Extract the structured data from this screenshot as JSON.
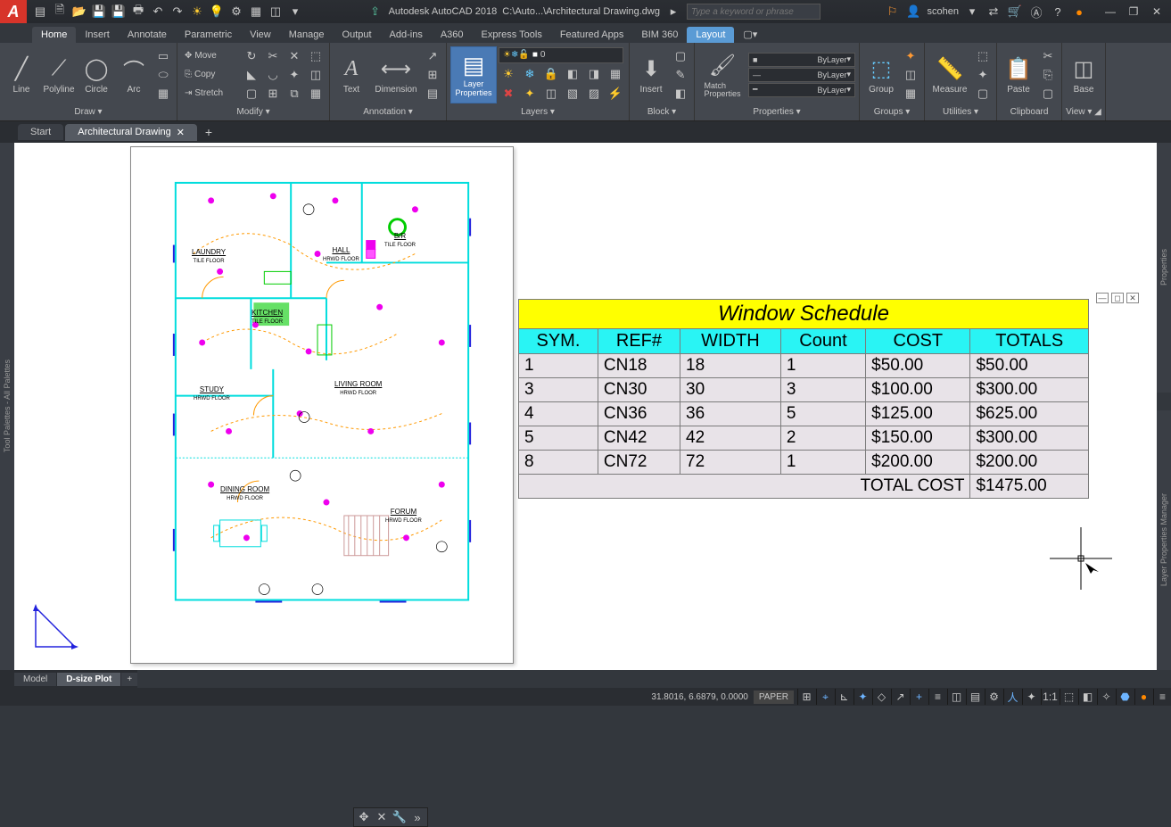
{
  "title": {
    "app": "Autodesk AutoCAD 2018",
    "file": "C:\\Auto...\\Architectural Drawing.dwg",
    "search_placeholder": "Type a keyword or phrase",
    "user": "scohen"
  },
  "qat": [
    "new",
    "open",
    "save",
    "undo",
    "redo",
    "print",
    "|",
    "sun",
    "bulb",
    "gear",
    "cloud",
    "share",
    "arrow"
  ],
  "tabs": [
    "Home",
    "Insert",
    "Annotate",
    "Parametric",
    "View",
    "Manage",
    "Output",
    "Add-ins",
    "A360",
    "Express Tools",
    "Featured Apps",
    "BIM 360",
    "Layout"
  ],
  "active_tab": "Home",
  "highlight_tab": "Layout",
  "ribbon": {
    "draw": {
      "label": "Draw ▾",
      "btns": [
        "Line",
        "Polyline",
        "Circle",
        "Arc"
      ]
    },
    "modify": {
      "label": "Modify ▾",
      "rows": [
        [
          "✥ Move",
          "↻",
          "✂"
        ],
        [
          "⎘ Copy",
          "▲",
          "▦"
        ],
        [
          "⇥ Stretch",
          "▢",
          "⊞"
        ]
      ]
    },
    "annotation": {
      "label": "Annotation ▾",
      "btns": [
        "Text",
        "Dimension"
      ]
    },
    "layers": {
      "label": "Layers ▾",
      "mainbtn": "Layer\nProperties",
      "dd_items": [
        "sun",
        "freeze",
        "lock",
        "color",
        "0"
      ]
    },
    "block": {
      "label": "Block ▾",
      "btn": "Insert"
    },
    "properties": {
      "label": "Properties ▾",
      "btn": "Match\nProperties",
      "bylayer": "ByLayer"
    },
    "groups": {
      "label": "Groups ▾",
      "btn": "Group"
    },
    "utilities": {
      "label": "Utilities ▾",
      "btn": "Measure"
    },
    "clipboard": {
      "label": "Clipboard",
      "btn": "Paste"
    },
    "view": {
      "label": "View ▾ ◢",
      "btn": "Base"
    }
  },
  "filetabs": {
    "start": "Start",
    "active": "Architectural Drawing"
  },
  "side_panels": {
    "left": "Tool Palettes - All Palettes",
    "right_top": "Properties",
    "right_bot": "Layer Properties Manager"
  },
  "rooms": {
    "laundry": {
      "name": "LAUNDRY",
      "sub": "TILE\nFLOOR"
    },
    "hall": {
      "name": "HALL",
      "sub": "HRWD\nFLOOR"
    },
    "br": {
      "name": "B/R",
      "sub": "TILE\nFLOOR"
    },
    "kitchen": {
      "name": "KITCHEN",
      "sub": "TILE\nFLOOR"
    },
    "study": {
      "name": "STUDY",
      "sub": "HRWD FLOOR"
    },
    "living": {
      "name": "LIVING ROOM",
      "sub": "HRWD FLOOR"
    },
    "dining": {
      "name": "DINING\nROOM",
      "sub": "HRWD FLOOR"
    },
    "forum": {
      "name": "FORUM",
      "sub": "HRWD FLOOR"
    }
  },
  "schedule": {
    "title": "Window Schedule",
    "columns": [
      "SYM.",
      "REF#",
      "WIDTH",
      "Count",
      "COST",
      "TOTALS"
    ],
    "rows": [
      [
        "1",
        "CN18",
        "18",
        "1",
        "$50.00",
        "$50.00"
      ],
      [
        "3",
        "CN30",
        "30",
        "3",
        "$100.00",
        "$300.00"
      ],
      [
        "4",
        "CN36",
        "36",
        "5",
        "$125.00",
        "$625.00"
      ],
      [
        "5",
        "CN42",
        "42",
        "2",
        "$150.00",
        "$300.00"
      ],
      [
        "8",
        "CN72",
        "72",
        "1",
        "$200.00",
        "$200.00"
      ]
    ],
    "total_label": "TOTAL COST",
    "total_value": "$1475.00",
    "colors": {
      "title_bg": "#ffff00",
      "head_bg": "#29f4f4",
      "row_bg": "#e8e3e8",
      "border": "#7b7b7b"
    }
  },
  "layout_tabs": {
    "model": "Model",
    "active": "D-size Plot"
  },
  "status": {
    "coords": "31.8016, 6.6879, 0.0000",
    "mode": "PAPER"
  }
}
